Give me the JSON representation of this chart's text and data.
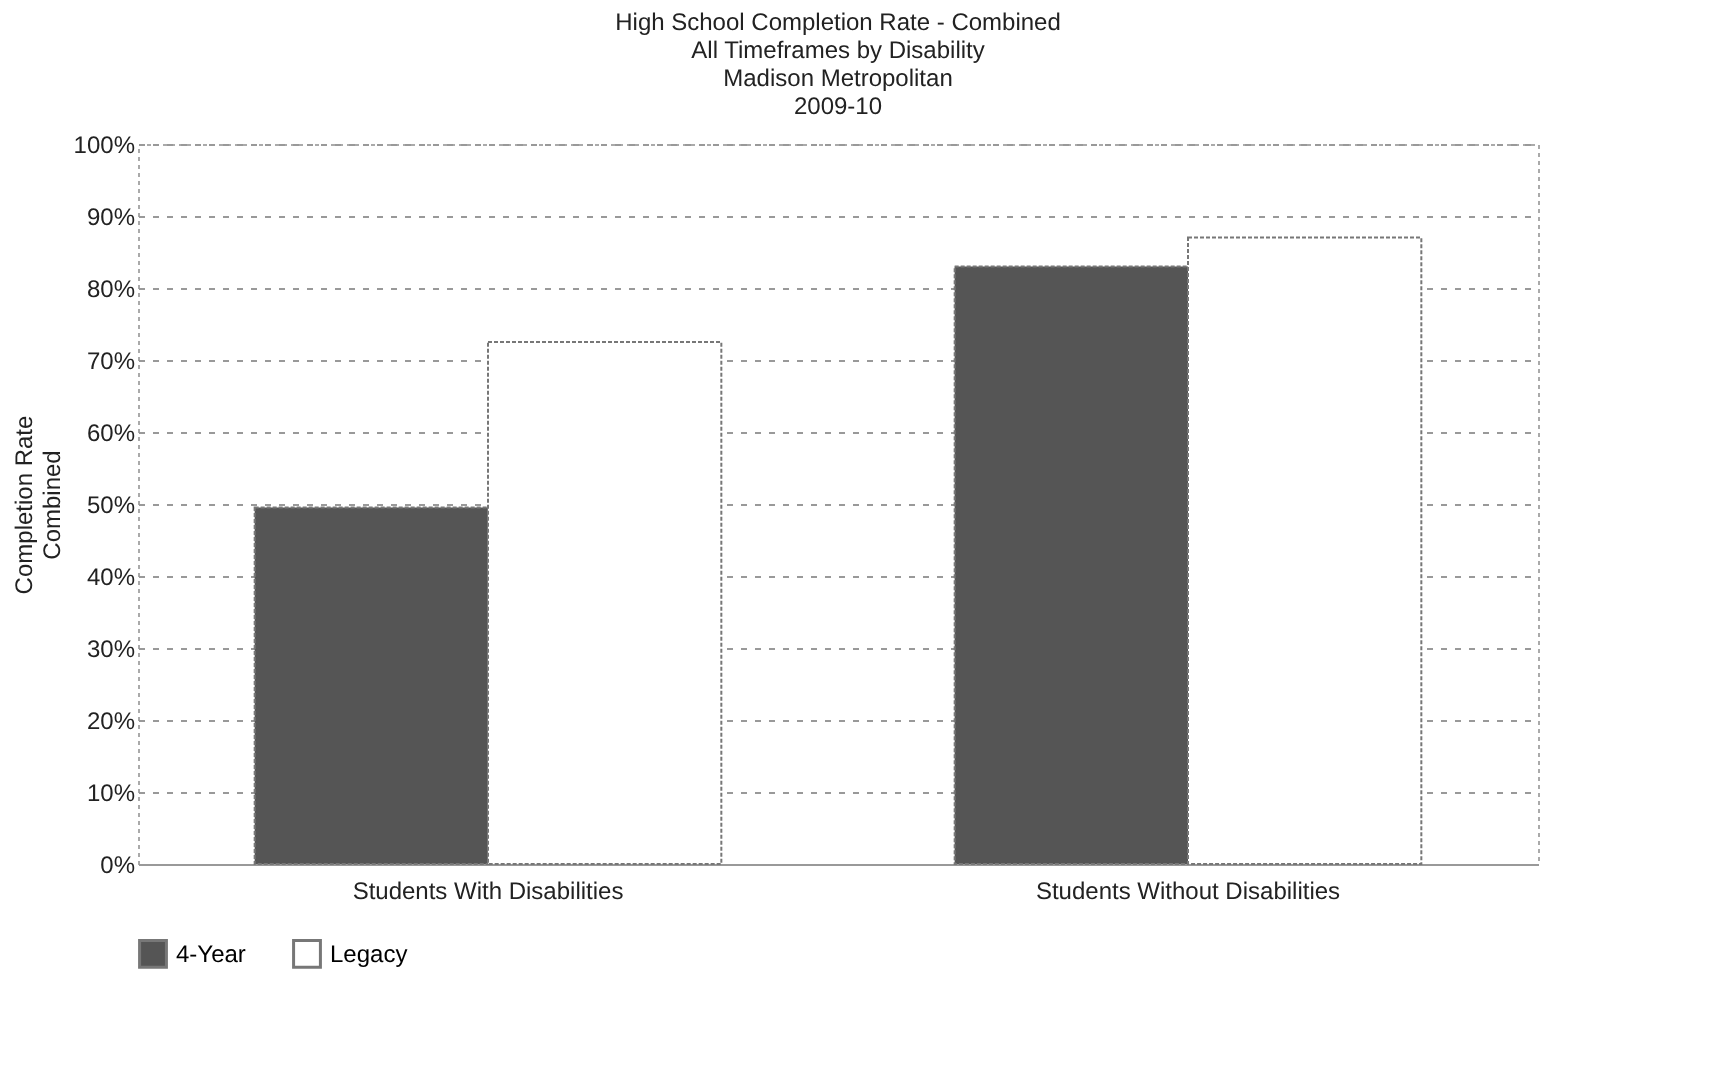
{
  "chart_data": {
    "type": "bar",
    "title": [
      "High School Completion Rate - Combined",
      "All Timeframes by Disability",
      "Madison Metropolitan",
      "2009-10"
    ],
    "ylabel": [
      "Completion Rate",
      "Combined"
    ],
    "categories": [
      "Students With Disabilities",
      "Students Without Disabilities"
    ],
    "series": [
      {
        "name": "4-Year",
        "color": "#555555",
        "values": [
          49.5,
          83
        ]
      },
      {
        "name": "Legacy",
        "color": "#ffffff",
        "values": [
          72.5,
          87
        ]
      }
    ],
    "ylim": [
      0,
      100
    ],
    "yticks": [
      {
        "value": 0,
        "label": "0%"
      },
      {
        "value": 10,
        "label": "10%"
      },
      {
        "value": 20,
        "label": "20%"
      },
      {
        "value": 30,
        "label": "30%"
      },
      {
        "value": 40,
        "label": "40%"
      },
      {
        "value": 50,
        "label": "50%"
      },
      {
        "value": 60,
        "label": "60%"
      },
      {
        "value": 70,
        "label": "70%"
      },
      {
        "value": 80,
        "label": "80%"
      },
      {
        "value": 90,
        "label": "90%"
      },
      {
        "value": 100,
        "label": "100%"
      }
    ],
    "grid": "y",
    "legend": "bottom"
  }
}
